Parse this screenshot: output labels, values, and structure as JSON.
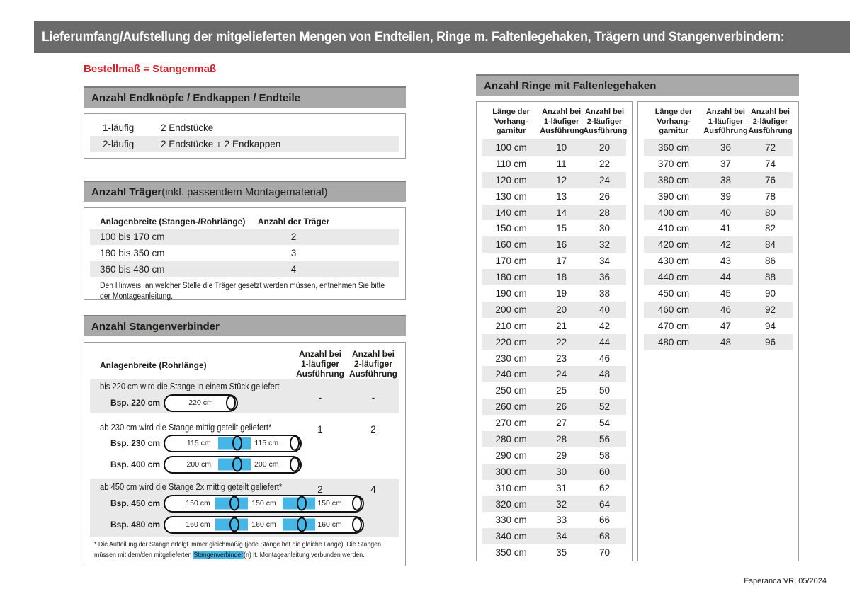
{
  "page": {
    "title": "Lieferumfang/Aufstellung der mitgelieferten Mengen von Endteilen, Ringe m. Faltenlegehaken, Trägern und Stangenverbindern:",
    "footer": "Esperanca VR, 05/2024",
    "colors": {
      "title_bar": "#6b6b6b",
      "section_bar": "#a9a9a9",
      "stripe": "#e9e9e9",
      "accent_red": "#d2232a",
      "connector_blue": "#45b6e6"
    }
  },
  "left": {
    "subtitle": "Bestellmaß = Stangenmaß",
    "endteile": {
      "header": "Anzahl Endknöpfe / Endkappen / Endteile",
      "rows": [
        {
          "label": "1-läufig",
          "value": "2 Endstücke"
        },
        {
          "label": "2-läufig",
          "value": "2 Endstücke + 2 Endkappen"
        }
      ]
    },
    "traeger": {
      "header_bold": "Anzahl Träger",
      "header_rest": " (inkl. passendem Montagematerial)",
      "col1": "Anlagenbreite (Stangen-/Rohrlänge)",
      "col2": "Anzahl der Träger",
      "rows": [
        {
          "range": "100 bis 170 cm",
          "count": "2"
        },
        {
          "range": "180 bis 350 cm",
          "count": "3"
        },
        {
          "range": "360 bis 480 cm",
          "count": "4"
        }
      ],
      "note_line1": "Den Hinweis, an welcher Stelle die Träger gesetzt werden müssen, entnehmen Sie bitte",
      "note_line2": "der Montageanleitung."
    },
    "verbinder": {
      "header": "Anzahl Stangenverbinder",
      "col1": "Anlagenbreite (Rohrlänge)",
      "col2": "Anzahl bei\n1-läufiger\nAusführung",
      "col3": "Anzahl bei\n2-läufiger\nAusführung",
      "blocks": [
        {
          "text": "bis 220 cm wird die Stange in einem Stück geliefert",
          "v1": "-",
          "v2": "-",
          "rods": [
            {
              "label": "Bsp. 220 cm",
              "segments": [
                "220 cm"
              ]
            }
          ]
        },
        {
          "text": "ab 230 cm wird die Stange mittig geteilt geliefert*",
          "v1": "1",
          "v2": "2",
          "rods": [
            {
              "label": "Bsp. 230 cm",
              "segments": [
                "115 cm",
                "115 cm"
              ]
            },
            {
              "label": "Bsp. 400 cm",
              "segments": [
                "200 cm",
                "200 cm"
              ]
            }
          ]
        },
        {
          "text": "ab 450 cm wird die Stange 2x mittig geteilt geliefert*",
          "v1": "2",
          "v2": "4",
          "rods": [
            {
              "label": "Bsp. 450 cm",
              "segments": [
                "150 cm",
                "150 cm",
                "150 cm"
              ]
            },
            {
              "label": "Bsp. 480 cm",
              "segments": [
                "160 cm",
                "160 cm",
                "160 cm"
              ]
            }
          ]
        }
      ],
      "footnote_line1": "* Die Aufteilung der Stange erfolgt immer gleichmäßig (jede Stange hat die gleiche Länge). Die Stangen",
      "footnote_line2_pre": "müssen mit dem/den mitgelieferten ",
      "footnote_highlight": "Stangenverbinder",
      "footnote_line2_post": "(n) lt. Montageanleitung verbunden werden."
    }
  },
  "rings": {
    "header": "Anzahl Ringe mit Faltenlegehaken",
    "col_headers": [
      "Länge der\nVorhang-\ngarnitur",
      "Anzahl bei\n1-läufiger\nAusführung",
      "Anzahl bei\n2-läufiger\nAusführung"
    ],
    "table1": [
      [
        "100 cm",
        "10",
        "20"
      ],
      [
        "110 cm",
        "11",
        "22"
      ],
      [
        "120 cm",
        "12",
        "24"
      ],
      [
        "130 cm",
        "13",
        "26"
      ],
      [
        "140 cm",
        "14",
        "28"
      ],
      [
        "150 cm",
        "15",
        "30"
      ],
      [
        "160 cm",
        "16",
        "32"
      ],
      [
        "170 cm",
        "17",
        "34"
      ],
      [
        "180 cm",
        "18",
        "36"
      ],
      [
        "190 cm",
        "19",
        "38"
      ],
      [
        "200 cm",
        "20",
        "40"
      ],
      [
        "210 cm",
        "21",
        "42"
      ],
      [
        "220 cm",
        "22",
        "44"
      ],
      [
        "230 cm",
        "23",
        "46"
      ],
      [
        "240 cm",
        "24",
        "48"
      ],
      [
        "250 cm",
        "25",
        "50"
      ],
      [
        "260 cm",
        "26",
        "52"
      ],
      [
        "270 cm",
        "27",
        "54"
      ],
      [
        "280 cm",
        "28",
        "56"
      ],
      [
        "290 cm",
        "29",
        "58"
      ],
      [
        "300 cm",
        "30",
        "60"
      ],
      [
        "310 cm",
        "31",
        "62"
      ],
      [
        "320 cm",
        "32",
        "64"
      ],
      [
        "330 cm",
        "33",
        "66"
      ],
      [
        "340 cm",
        "34",
        "68"
      ],
      [
        "350 cm",
        "35",
        "70"
      ]
    ],
    "table2": [
      [
        "360 cm",
        "36",
        "72"
      ],
      [
        "370 cm",
        "37",
        "74"
      ],
      [
        "380 cm",
        "38",
        "76"
      ],
      [
        "390 cm",
        "39",
        "78"
      ],
      [
        "400 cm",
        "40",
        "80"
      ],
      [
        "410 cm",
        "41",
        "82"
      ],
      [
        "420 cm",
        "42",
        "84"
      ],
      [
        "430 cm",
        "43",
        "86"
      ],
      [
        "440 cm",
        "44",
        "88"
      ],
      [
        "450 cm",
        "45",
        "90"
      ],
      [
        "460 cm",
        "46",
        "92"
      ],
      [
        "470 cm",
        "47",
        "94"
      ],
      [
        "480 cm",
        "48",
        "96"
      ]
    ]
  }
}
